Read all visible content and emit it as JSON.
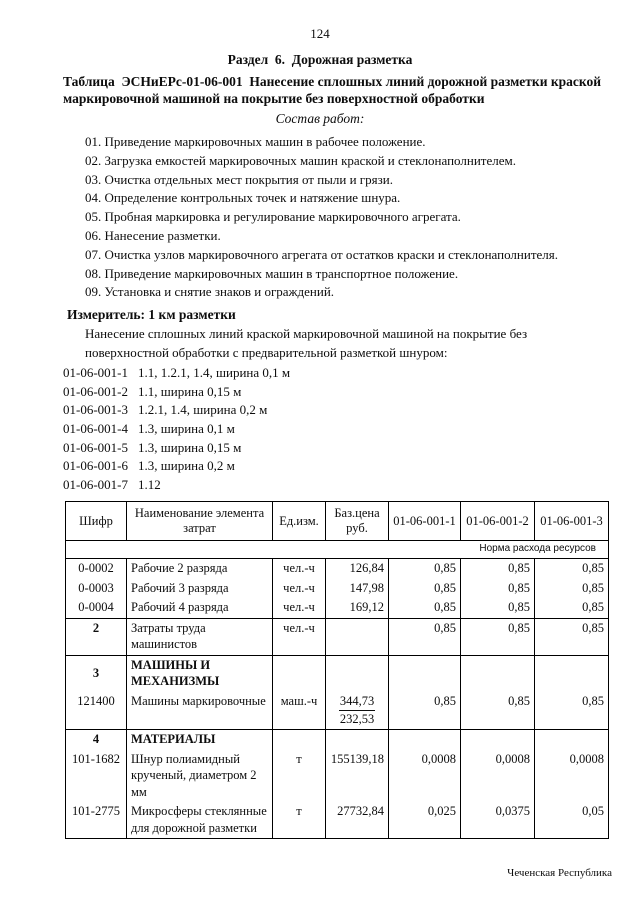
{
  "page": {
    "number": "124",
    "section_heading": "Раздел  6.  Дорожная разметка",
    "table_title": "Таблица  ЭСНиЕРс-01-06-001  Нанесение сплошных линий дорожной разметки краской маркировочной машиной на покрытие без поверхностной обработки",
    "composition_heading": "Состав работ:",
    "work_items": [
      "01. Приведение маркировочных машин в рабочее положение.",
      "02. Загрузка емкостей маркировочных машин краской и стеклонаполнителем.",
      "03. Очистка отдельных мест покрытия от пыли и грязи.",
      "04. Определение контрольных точек и натяжение шнура.",
      "05. Пробная маркировка и регулирование маркировочного агрегата.",
      "06. Нанесение разметки.",
      "07. Очистка узлов маркировочного агрегата от остатков краски и стеклонаполнителя.",
      "08. Приведение маркировочных машин в транспортное положение.",
      "09. Установка и снятие знаков и ограждений."
    ],
    "measure_label": "Измеритель: 1 км разметки",
    "intro": "Нанесение сплошных линий краской маркировочной машиной на покрытие без поверхностной обработки с предварительной разметкой шнуром:",
    "variants": [
      {
        "code": "01-06-001-1",
        "desc": "1.1, 1.2.1, 1.4, ширина 0,1 м"
      },
      {
        "code": "01-06-001-2",
        "desc": "1.1, ширина 0,15 м"
      },
      {
        "code": "01-06-001-3",
        "desc": "1.2.1, 1.4, ширина 0,2 м"
      },
      {
        "code": "01-06-001-4",
        "desc": "1.3, ширина 0,1 м"
      },
      {
        "code": "01-06-001-5",
        "desc": "1.3, ширина 0,15 м"
      },
      {
        "code": "01-06-001-6",
        "desc": "1.3, ширина 0,2 м"
      },
      {
        "code": "01-06-001-7",
        "desc": "1.12"
      }
    ],
    "footer": "Чеченская Республика"
  },
  "table": {
    "headers": [
      "Шифр",
      "Наименование элемента затрат",
      "Ед.изм.",
      "Баз.цена руб.",
      "01-06-001-1",
      "01-06-001-2",
      "01-06-001-3"
    ],
    "subheader": "Норма расхода ресурсов",
    "rows": [
      {
        "code": "0-0002",
        "name": "Рабочие 2 разряда",
        "unit": "чел.-ч",
        "price": "126,84",
        "v1": "0,85",
        "v2": "0,85",
        "v3": "0,85",
        "group_start": true
      },
      {
        "code": "0-0003",
        "name": "Рабочий 3 разряда",
        "unit": "чел.-ч",
        "price": "147,98",
        "v1": "0,85",
        "v2": "0,85",
        "v3": "0,85"
      },
      {
        "code": "0-0004",
        "name": "Рабочий 4 разряда",
        "unit": "чел.-ч",
        "price": "169,12",
        "v1": "0,85",
        "v2": "0,85",
        "v3": "0,85"
      },
      {
        "code": "2",
        "code_bold": true,
        "name": "Затраты труда машинистов",
        "unit": "чел.-ч",
        "price": "",
        "v1": "0,85",
        "v2": "0,85",
        "v3": "0,85",
        "group_start": true
      },
      {
        "code": "3",
        "code_bold": true,
        "name": "МАШИНЫ И МЕХАНИЗМЫ",
        "name_bold": true,
        "unit": "",
        "price": "",
        "v1": "",
        "v2": "",
        "v3": "",
        "group_start": true
      },
      {
        "code": "121400",
        "name": "Машины маркировочные",
        "unit": "маш.-ч",
        "price": {
          "top": "344,73",
          "bottom": "232,53"
        },
        "v1": "0,85",
        "v2": "0,85",
        "v3": "0,85"
      },
      {
        "code": "4",
        "code_bold": true,
        "name": "МАТЕРИАЛЫ",
        "name_bold": true,
        "unit": "",
        "price": "",
        "v1": "",
        "v2": "",
        "v3": "",
        "group_start": true
      },
      {
        "code": "101-1682",
        "name": "Шнур полиамидный крученый, диаметром 2 мм",
        "unit": "т",
        "price": "155139,18",
        "v1": "0,0008",
        "v2": "0,0008",
        "v3": "0,0008"
      },
      {
        "code": "101-2775",
        "name": "Микросферы стеклянные для дорожной разметки",
        "unit": "т",
        "price": "27732,84",
        "v1": "0,025",
        "v2": "0,0375",
        "v3": "0,05"
      }
    ]
  }
}
